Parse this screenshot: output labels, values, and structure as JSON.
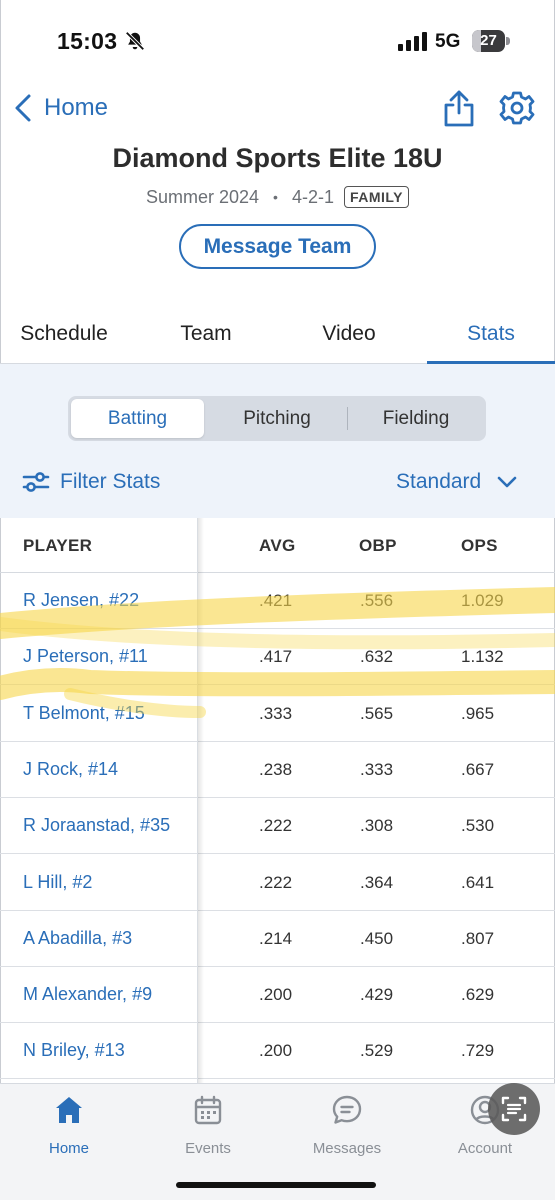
{
  "status_bar": {
    "time": "15:03",
    "network": "5G",
    "battery": "27",
    "battery_fraction": 0.27
  },
  "header": {
    "back_label": "Home"
  },
  "team": {
    "name": "Diamond Sports Elite 18U",
    "season": "Summer 2024",
    "record": "4-2-1",
    "role_badge": "FAMILY"
  },
  "message_button": "Message Team",
  "tabs": [
    {
      "label": "Schedule"
    },
    {
      "label": "Team"
    },
    {
      "label": "Video"
    },
    {
      "label": "Stats",
      "active": true
    }
  ],
  "segments": [
    {
      "label": "Batting",
      "active": true
    },
    {
      "label": "Pitching"
    },
    {
      "label": "Fielding"
    }
  ],
  "filter_label": "Filter Stats",
  "view_select": "Standard",
  "table": {
    "headers": [
      "PLAYER",
      "AVG",
      "OBP",
      "OPS"
    ],
    "rows": [
      {
        "player": "R Jensen, #22",
        "avg": ".421",
        "obp": ".556",
        "ops": "1.029"
      },
      {
        "player": "J Peterson, #11",
        "avg": ".417",
        "obp": ".632",
        "ops": "1.132"
      },
      {
        "player": "T Belmont, #15",
        "avg": ".333",
        "obp": ".565",
        "ops": ".965"
      },
      {
        "player": "J Rock, #14",
        "avg": ".238",
        "obp": ".333",
        "ops": ".667"
      },
      {
        "player": "R Joraanstad, #35",
        "avg": ".222",
        "obp": ".308",
        "ops": ".530"
      },
      {
        "player": "L Hill, #2",
        "avg": ".222",
        "obp": ".364",
        "ops": ".641"
      },
      {
        "player": "A Abadilla, #3",
        "avg": ".214",
        "obp": ".450",
        "ops": ".807"
      },
      {
        "player": "M Alexander, #9",
        "avg": ".200",
        "obp": ".429",
        "ops": ".629"
      },
      {
        "player": "N Briley, #13",
        "avg": ".200",
        "obp": ".529",
        "ops": ".729"
      }
    ]
  },
  "bottom_nav": [
    {
      "label": "Home",
      "icon": "home-icon",
      "active": true
    },
    {
      "label": "Events",
      "icon": "calendar-icon"
    },
    {
      "label": "Messages",
      "icon": "message-icon"
    },
    {
      "label": "Account",
      "icon": "account-icon"
    }
  ],
  "colors": {
    "accent": "#2a6eb8",
    "highlight": "#f7d64a",
    "stats_background": "#eef3fa"
  }
}
